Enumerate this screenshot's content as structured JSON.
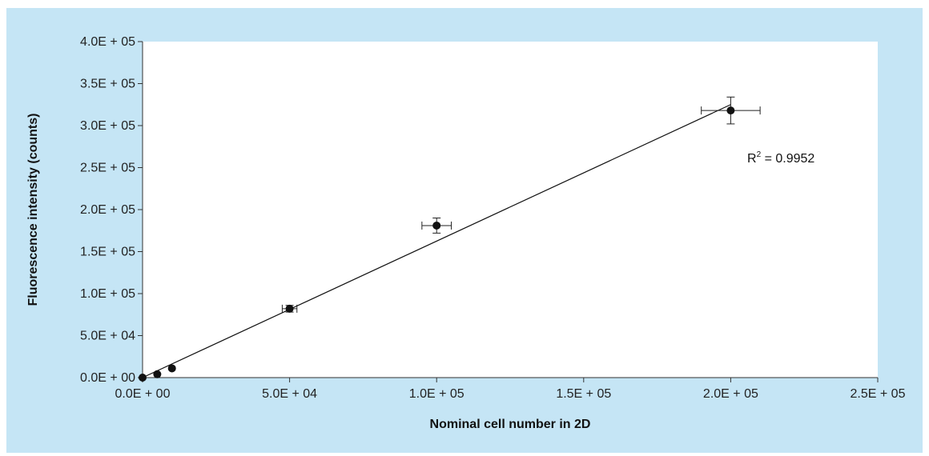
{
  "chart_data": {
    "type": "scatter",
    "title": "",
    "xlabel": "Nominal cell number in 2D",
    "ylabel": "Fluorescence intensity (counts)",
    "xlim": [
      0,
      250000
    ],
    "ylim": [
      0,
      400000
    ],
    "x_ticks": [
      0,
      50000,
      100000,
      150000,
      200000,
      250000
    ],
    "x_tick_labels": [
      "0.0E + 00",
      "5.0E + 04",
      "1.0E + 05",
      "1.5E + 05",
      "2.0E + 05",
      "2.5E + 05"
    ],
    "y_ticks": [
      0,
      50000,
      100000,
      150000,
      200000,
      250000,
      300000,
      350000,
      400000
    ],
    "y_tick_labels": [
      "0.0E + 00",
      "5.0E + 04",
      "1.0E + 05",
      "1.5E + 05",
      "2.0E + 05",
      "2.5E + 05",
      "3.0E + 05",
      "3.5E + 05",
      "4.0E + 05"
    ],
    "grid": false,
    "points": [
      {
        "x": 0,
        "y": 0,
        "xerr": 0,
        "yerr": 0
      },
      {
        "x": 5000,
        "y": 4000,
        "xerr": 0,
        "yerr": 0
      },
      {
        "x": 10000,
        "y": 11000,
        "xerr": 0,
        "yerr": 0
      },
      {
        "x": 50000,
        "y": 82000,
        "xerr": 2500,
        "yerr": 4000
      },
      {
        "x": 100000,
        "y": 181000,
        "xerr": 5000,
        "yerr": 9000
      },
      {
        "x": 200000,
        "y": 318000,
        "xerr": 10000,
        "yerr": 16000
      }
    ],
    "fit_line": {
      "x": [
        0,
        200000
      ],
      "y": [
        0,
        325000
      ]
    },
    "annotation": {
      "r2_base": "R",
      "r2_sup": "2",
      "r2_value": " = 0.9952"
    }
  },
  "colors": {
    "background": "#c5e5f5",
    "plot_area": "#ffffff",
    "marker": "#111111",
    "line": "#111111"
  }
}
